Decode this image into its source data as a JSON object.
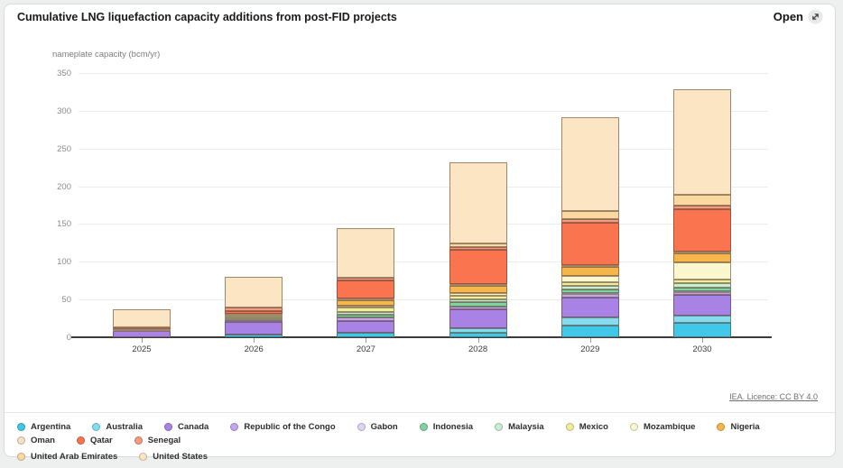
{
  "header": {
    "title": "Cumulative LNG liquefaction capacity additions from post-FID projects",
    "open_label": "Open"
  },
  "footer": {
    "licence": "IEA. Licence: CC BY 4.0"
  },
  "chart_data": {
    "type": "bar",
    "stacked": true,
    "title": "Cumulative LNG liquefaction capacity additions from post-FID projects",
    "ylabel": "nameplate capacity (bcm/yr)",
    "xlabel": "",
    "categories": [
      "2025",
      "2026",
      "2027",
      "2028",
      "2029",
      "2030"
    ],
    "ylim": [
      0,
      350
    ],
    "yticks": [
      0,
      50,
      100,
      150,
      200,
      250,
      300,
      350
    ],
    "grid": true,
    "legend_position": "bottom",
    "series": [
      {
        "name": "Argentina",
        "color": "#41C7E8",
        "values": [
          0,
          4,
          6,
          6,
          16,
          19
        ]
      },
      {
        "name": "Australia",
        "color": "#86DCEF",
        "values": [
          0,
          0,
          0,
          6,
          10,
          10
        ]
      },
      {
        "name": "Canada",
        "color": "#A982E6",
        "values": [
          8,
          16,
          16,
          25,
          27,
          27
        ]
      },
      {
        "name": "Republic of the Congo",
        "color": "#C3A5EE",
        "values": [
          2,
          3,
          4,
          4,
          4,
          4
        ]
      },
      {
        "name": "Gabon",
        "color": "#E0D3F6",
        "values": [
          0,
          0,
          0,
          0,
          1,
          1
        ]
      },
      {
        "name": "Indonesia",
        "color": "#7FD3A0",
        "values": [
          0,
          0,
          4,
          5,
          5,
          5
        ]
      },
      {
        "name": "Malaysia",
        "color": "#C9EDD3",
        "values": [
          0,
          2,
          4,
          4,
          5,
          6
        ]
      },
      {
        "name": "Mexico",
        "color": "#F2EC9B",
        "values": [
          0,
          3,
          5,
          5,
          5,
          5
        ]
      },
      {
        "name": "Mozambique",
        "color": "#FAF7CE",
        "values": [
          0,
          2,
          3,
          4,
          8,
          22
        ]
      },
      {
        "name": "Nigeria",
        "color": "#F6B64B",
        "values": [
          0,
          0,
          7,
          9,
          12,
          12
        ]
      },
      {
        "name": "Oman",
        "color": "#F3E1C3",
        "values": [
          1,
          1,
          2,
          2,
          2,
          2
        ]
      },
      {
        "name": "Qatar",
        "color": "#FA7450",
        "values": [
          0,
          4,
          24,
          46,
          57,
          57
        ]
      },
      {
        "name": "Senegal",
        "color": "#F49B82",
        "values": [
          2,
          4,
          4,
          4,
          4,
          4
        ]
      },
      {
        "name": "United Arab Emirates",
        "color": "#FAD9A1",
        "values": [
          0,
          0,
          0,
          4,
          11,
          15
        ]
      },
      {
        "name": "United States",
        "color": "#FBE5C3",
        "values": [
          24,
          41,
          66,
          108,
          125,
          139
        ]
      }
    ],
    "totals": [
      37,
      80,
      145,
      232,
      292,
      328
    ]
  }
}
